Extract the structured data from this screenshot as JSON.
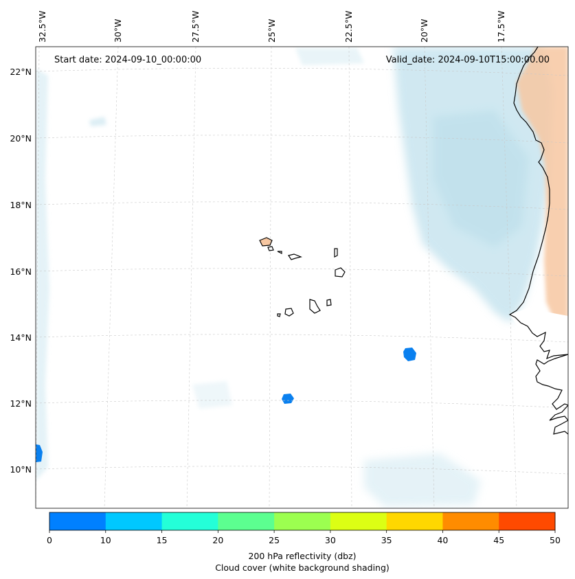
{
  "map": {
    "start_date_text": "Start date: 2024-09-10_00:00:00",
    "valid_date_text": "Valid_date: 2024-09-10T15:00:00.00",
    "lon_labels": [
      "32.5°W",
      "30°W",
      "27.5°W",
      "25°W",
      "22.5°W",
      "20°W",
      "17.5°W"
    ],
    "lat_labels": [
      "22°N",
      "20°N",
      "18°N",
      "16°N",
      "14°N",
      "12°N",
      "10°N"
    ],
    "lat_range": [
      8.9,
      22.8
    ],
    "lon_range": [
      -33.0,
      -16.0
    ]
  },
  "colorbar": {
    "ticks": [
      "0",
      "10",
      "15",
      "20",
      "25",
      "30",
      "35",
      "40",
      "45",
      "50"
    ],
    "colors": [
      "#0080ff",
      "#00c8ff",
      "#24ffd8",
      "#5cff90",
      "#9cff50",
      "#dcff14",
      "#ffd700",
      "#ff8c00",
      "#ff4a00"
    ],
    "label_line1": "200 hPa reflectivity (dbz)",
    "label_line2": "Cloud cover (white background shading)"
  },
  "colors": {
    "cloud": "#a9d6e6",
    "land_warm": "#f7c7a1",
    "reflectivity_low": "#0a80ef",
    "coast": "#000000"
  }
}
